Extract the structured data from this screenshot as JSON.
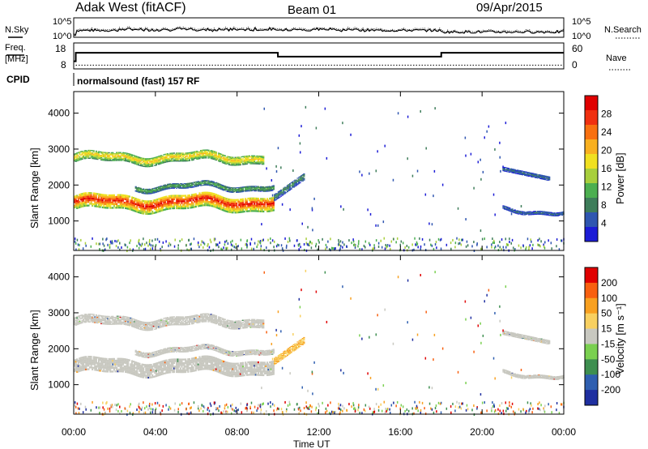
{
  "header": {
    "site": "Adak West (fitACF)",
    "beam": "Beam 01",
    "date": "09/Apr/2015"
  },
  "noise_panel": {
    "left_label": "N.Sky",
    "left_ticks": [
      "10^5",
      "10^0"
    ],
    "right_label": "N.Search",
    "right_ticks": [
      "10^5",
      "10^0"
    ]
  },
  "freq_panel": {
    "left_label_1": "Freq.",
    "left_label_2": "[MHz]",
    "left_ticks": [
      "18",
      "8"
    ],
    "right_label": "Nave",
    "right_ticks": [
      "60",
      "0"
    ]
  },
  "cpid_panel": {
    "label": "CPID",
    "text": "normalsound (fast) 157 RF"
  },
  "x_axis": {
    "label": "Time UT",
    "ticks": [
      "00:00",
      "04:00",
      "08:00",
      "12:00",
      "16:00",
      "20:00",
      "00:00"
    ]
  },
  "power_panel": {
    "ylabel": "Slant Range [km]",
    "yticks": [
      "4000",
      "3000",
      "2000",
      "1000"
    ],
    "colorbar_label": "Power [dB]",
    "colorbar_ticks": [
      "28",
      "24",
      "20",
      "16",
      "12",
      "8",
      "4"
    ],
    "colors": [
      "#1c1cd6",
      "#2f56b0",
      "#3e7d5a",
      "#4caf50",
      "#a8cf3c",
      "#f0e020",
      "#f8b020",
      "#f87010",
      "#f03010",
      "#e00000"
    ]
  },
  "velocity_panel": {
    "ylabel": "Slant Range [km]",
    "yticks": [
      "4000",
      "3000",
      "2000",
      "1000"
    ],
    "colorbar_label": "Velocity [m s⁻¹]",
    "colorbar_ticks": [
      "200",
      "100",
      "50",
      "15",
      "-15",
      "-50",
      "-100",
      "-200"
    ],
    "colors": [
      "#1f2fa0",
      "#2f5fb0",
      "#3e8f50",
      "#7ad050",
      "#c8c8c0",
      "#f8d060",
      "#f8a020",
      "#f86010",
      "#e00000"
    ]
  },
  "chart_data": {
    "type": "heatmap",
    "title": "Adak West (fitACF) Beam 01 09/Apr/2015",
    "xlabel": "Time UT",
    "ylabel": "Slant Range [km]",
    "xlim_hours": [
      0,
      24
    ],
    "ylim_km": [
      180,
      4600
    ],
    "freq_mhz": [
      {
        "start_h": 0.0,
        "end_h": 0.1,
        "value": 8
      },
      {
        "start_h": 0.1,
        "end_h": 10.0,
        "value": 12.5
      },
      {
        "start_h": 10.0,
        "end_h": 18.0,
        "value": 10.5
      },
      {
        "start_h": 18.0,
        "end_h": 24.0,
        "value": 12.5
      }
    ],
    "nave": 10,
    "echo_bands": [
      {
        "name": "upper band",
        "start_h": 0.0,
        "end_h": 9.3,
        "center_km": 2750,
        "width_km": 250,
        "power_db": 18,
        "velocity": 0
      },
      {
        "name": "main band",
        "start_h": 0.0,
        "end_h": 9.8,
        "center_km": 1500,
        "width_km": 400,
        "power_db": 26,
        "velocity": 0
      },
      {
        "name": "lower-mid band",
        "start_h": 3.0,
        "end_h": 9.8,
        "center_km": 1950,
        "width_km": 150,
        "power_db": 10,
        "velocity": 0
      },
      {
        "name": "rising feature",
        "start_h": 9.8,
        "end_h": 11.3,
        "center_km": 1900,
        "width_km": 200,
        "power_db": 8,
        "velocity": -15
      },
      {
        "name": "late upper streak",
        "start_h": 21.0,
        "end_h": 23.3,
        "center_km": 2250,
        "width_km": 120,
        "power_db": 6,
        "velocity": 0
      },
      {
        "name": "late lower streak",
        "start_h": 21.0,
        "end_h": 24.0,
        "center_km": 1280,
        "width_km": 100,
        "power_db": 6,
        "velocity": 0
      }
    ],
    "power_range_db": [
      0,
      30
    ],
    "velocity_range": [
      -200,
      200
    ]
  }
}
